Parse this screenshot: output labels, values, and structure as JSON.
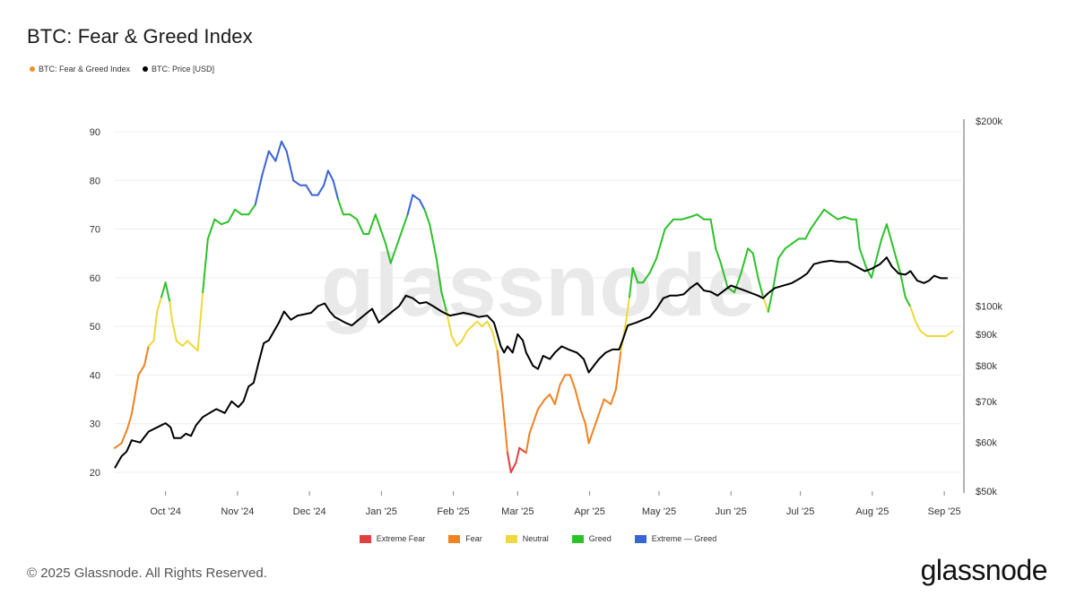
{
  "title": "BTC: Fear & Greed Index",
  "legend_top": [
    {
      "label": "BTC: Fear & Greed Index",
      "color": "#f0912a"
    },
    {
      "label": "BTC: Price [USD]",
      "color": "#000000"
    }
  ],
  "legend_bottom": [
    {
      "label": "Extreme Fear",
      "color": "#e04040"
    },
    {
      "label": "Fear",
      "color": "#ef8222"
    },
    {
      "label": "Neutral",
      "color": "#efd93a"
    },
    {
      "label": "Greed",
      "color": "#2dc12a"
    },
    {
      "label": "Extreme — Greed",
      "color": "#3a63d6"
    }
  ],
  "watermark": "glassnode",
  "copyright": "© 2025 Glassnode. All Rights Reserved.",
  "brand": "glassnode",
  "chart_data": {
    "type": "line",
    "title": "BTC: Fear & Greed Index",
    "x_start": "2024-09-09",
    "x_end": "2025-09-08",
    "x_ticks": [
      {
        "label": "Oct '24",
        "t": 0.06
      },
      {
        "label": "Nov '24",
        "t": 0.145
      },
      {
        "label": "Dec '24",
        "t": 0.23
      },
      {
        "label": "Jan '25",
        "t": 0.315
      },
      {
        "label": "Feb '25",
        "t": 0.4
      },
      {
        "label": "Mar '25",
        "t": 0.476
      },
      {
        "label": "Apr '25",
        "t": 0.561
      },
      {
        "label": "May '25",
        "t": 0.643
      },
      {
        "label": "Jun '25",
        "t": 0.728
      },
      {
        "label": "Jul '25",
        "t": 0.81
      },
      {
        "label": "Aug '25",
        "t": 0.895
      },
      {
        "label": "Sep '25",
        "t": 0.98
      }
    ],
    "y_left": {
      "min": 18,
      "max": 92,
      "ticks": [
        20,
        30,
        40,
        50,
        60,
        70,
        80,
        90
      ]
    },
    "y_right": {
      "scale": "log",
      "min": 50000,
      "max": 200000,
      "ticks": [
        {
          "value": 200000,
          "label": "$200k"
        },
        {
          "value": 100000,
          "label": "$100k"
        },
        {
          "value": 90000,
          "label": "$90k"
        },
        {
          "value": 80000,
          "label": "$80k"
        },
        {
          "value": 70000,
          "label": "$70k"
        },
        {
          "value": 60000,
          "label": "$60k"
        },
        {
          "value": 50000,
          "label": "$50k"
        }
      ]
    },
    "thresholds": {
      "extreme_fear": 25,
      "fear": 45,
      "neutral": 55,
      "greed": 75
    },
    "series": [
      {
        "name": "BTC: Fear & Greed Index",
        "points": [
          [
            0,
            25
          ],
          [
            0.008,
            26
          ],
          [
            0.015,
            29
          ],
          [
            0.02,
            32
          ],
          [
            0.028,
            40
          ],
          [
            0.035,
            42
          ],
          [
            0.04,
            46
          ],
          [
            0.046,
            47
          ],
          [
            0.05,
            53
          ],
          [
            0.055,
            56
          ],
          [
            0.06,
            59
          ],
          [
            0.065,
            55
          ],
          [
            0.068,
            51
          ],
          [
            0.073,
            47
          ],
          [
            0.08,
            46
          ],
          [
            0.086,
            47
          ],
          [
            0.092,
            46
          ],
          [
            0.098,
            45
          ],
          [
            0.104,
            57
          ],
          [
            0.11,
            68
          ],
          [
            0.118,
            72
          ],
          [
            0.126,
            71
          ],
          [
            0.134,
            71.5
          ],
          [
            0.142,
            74
          ],
          [
            0.15,
            73
          ],
          [
            0.158,
            73
          ],
          [
            0.166,
            75
          ],
          [
            0.174,
            81
          ],
          [
            0.182,
            86
          ],
          [
            0.19,
            84
          ],
          [
            0.197,
            88
          ],
          [
            0.203,
            86
          ],
          [
            0.211,
            80
          ],
          [
            0.219,
            79
          ],
          [
            0.226,
            79
          ],
          [
            0.233,
            77
          ],
          [
            0.24,
            77
          ],
          [
            0.247,
            79
          ],
          [
            0.252,
            82
          ],
          [
            0.258,
            80
          ],
          [
            0.264,
            76
          ],
          [
            0.27,
            73
          ],
          [
            0.278,
            73
          ],
          [
            0.286,
            72
          ],
          [
            0.294,
            69
          ],
          [
            0.3,
            69
          ],
          [
            0.308,
            73
          ],
          [
            0.314,
            70
          ],
          [
            0.32,
            67
          ],
          [
            0.326,
            63
          ],
          [
            0.33,
            65
          ],
          [
            0.338,
            69
          ],
          [
            0.346,
            73
          ],
          [
            0.352,
            77
          ],
          [
            0.36,
            76
          ],
          [
            0.366,
            74
          ],
          [
            0.372,
            71
          ],
          [
            0.38,
            64
          ],
          [
            0.386,
            57
          ],
          [
            0.392,
            53
          ],
          [
            0.398,
            48
          ],
          [
            0.404,
            46
          ],
          [
            0.41,
            47
          ],
          [
            0.416,
            49
          ],
          [
            0.422,
            50
          ],
          [
            0.428,
            51
          ],
          [
            0.434,
            50
          ],
          [
            0.44,
            51
          ],
          [
            0.446,
            49
          ],
          [
            0.452,
            45
          ],
          [
            0.458,
            35
          ],
          [
            0.464,
            24
          ],
          [
            0.468,
            20
          ],
          [
            0.474,
            22
          ],
          [
            0.478,
            25
          ],
          [
            0.486,
            24
          ],
          [
            0.49,
            28
          ],
          [
            0.496,
            31
          ],
          [
            0.5,
            33
          ],
          [
            0.508,
            35
          ],
          [
            0.514,
            36
          ],
          [
            0.52,
            34
          ],
          [
            0.526,
            38
          ],
          [
            0.532,
            40
          ],
          [
            0.538,
            40
          ],
          [
            0.544,
            37
          ],
          [
            0.55,
            33
          ],
          [
            0.556,
            30
          ],
          [
            0.56,
            26
          ],
          [
            0.566,
            29
          ],
          [
            0.572,
            32
          ],
          [
            0.578,
            35
          ],
          [
            0.586,
            34
          ],
          [
            0.592,
            37
          ],
          [
            0.598,
            45
          ],
          [
            0.604,
            51
          ],
          [
            0.608,
            56
          ],
          [
            0.612,
            62
          ],
          [
            0.618,
            59
          ],
          [
            0.624,
            59
          ],
          [
            0.632,
            61
          ],
          [
            0.64,
            64
          ],
          [
            0.65,
            70
          ],
          [
            0.66,
            72
          ],
          [
            0.67,
            72
          ],
          [
            0.68,
            72.5
          ],
          [
            0.688,
            73
          ],
          [
            0.696,
            72
          ],
          [
            0.704,
            72
          ],
          [
            0.71,
            66
          ],
          [
            0.716,
            63
          ],
          [
            0.724,
            58
          ],
          [
            0.732,
            57
          ],
          [
            0.74,
            61
          ],
          [
            0.748,
            66
          ],
          [
            0.754,
            65
          ],
          [
            0.76,
            60
          ],
          [
            0.766,
            56
          ],
          [
            0.772,
            53
          ],
          [
            0.778,
            58
          ],
          [
            0.784,
            64
          ],
          [
            0.792,
            66
          ],
          [
            0.8,
            67
          ],
          [
            0.808,
            68
          ],
          [
            0.816,
            68
          ],
          [
            0.822,
            70
          ],
          [
            0.83,
            72
          ],
          [
            0.838,
            74
          ],
          [
            0.846,
            73
          ],
          [
            0.854,
            72
          ],
          [
            0.862,
            72.5
          ],
          [
            0.87,
            72
          ],
          [
            0.876,
            72
          ],
          [
            0.88,
            66
          ],
          [
            0.888,
            62
          ],
          [
            0.894,
            60
          ],
          [
            0.9,
            64
          ],
          [
            0.906,
            68
          ],
          [
            0.912,
            71
          ],
          [
            0.92,
            66
          ],
          [
            0.928,
            61
          ],
          [
            0.934,
            56
          ],
          [
            0.94,
            54
          ],
          [
            0.946,
            51
          ],
          [
            0.952,
            49
          ],
          [
            0.96,
            48
          ],
          [
            0.966,
            48
          ],
          [
            0.974,
            48
          ],
          [
            0.982,
            48
          ],
          [
            0.99,
            49
          ]
        ]
      },
      {
        "name": "BTC: Price [USD]",
        "points": [
          [
            0,
            54500
          ],
          [
            0.008,
            57000
          ],
          [
            0.014,
            58000
          ],
          [
            0.02,
            60500
          ],
          [
            0.03,
            60000
          ],
          [
            0.04,
            62500
          ],
          [
            0.05,
            63500
          ],
          [
            0.06,
            64500
          ],
          [
            0.066,
            63500
          ],
          [
            0.07,
            61000
          ],
          [
            0.078,
            61000
          ],
          [
            0.084,
            62000
          ],
          [
            0.09,
            61500
          ],
          [
            0.096,
            64000
          ],
          [
            0.104,
            66000
          ],
          [
            0.112,
            67000
          ],
          [
            0.12,
            68000
          ],
          [
            0.13,
            67000
          ],
          [
            0.138,
            70000
          ],
          [
            0.146,
            68500
          ],
          [
            0.152,
            70000
          ],
          [
            0.158,
            74000
          ],
          [
            0.164,
            75000
          ],
          [
            0.17,
            81000
          ],
          [
            0.176,
            87000
          ],
          [
            0.182,
            88000
          ],
          [
            0.188,
            91000
          ],
          [
            0.194,
            94000
          ],
          [
            0.2,
            98000
          ],
          [
            0.208,
            95000
          ],
          [
            0.216,
            96500
          ],
          [
            0.224,
            97000
          ],
          [
            0.232,
            97500
          ],
          [
            0.24,
            100000
          ],
          [
            0.248,
            101000
          ],
          [
            0.254,
            98000
          ],
          [
            0.26,
            96000
          ],
          [
            0.266,
            95000
          ],
          [
            0.272,
            94000
          ],
          [
            0.28,
            93000
          ],
          [
            0.288,
            95000
          ],
          [
            0.296,
            97000
          ],
          [
            0.304,
            99000
          ],
          [
            0.312,
            94000
          ],
          [
            0.32,
            96000
          ],
          [
            0.328,
            98000
          ],
          [
            0.336,
            100000
          ],
          [
            0.344,
            104000
          ],
          [
            0.352,
            103000
          ],
          [
            0.36,
            101000
          ],
          [
            0.368,
            101500
          ],
          [
            0.376,
            100000
          ],
          [
            0.386,
            98000
          ],
          [
            0.396,
            96500
          ],
          [
            0.404,
            97000
          ],
          [
            0.412,
            97500
          ],
          [
            0.42,
            97000
          ],
          [
            0.43,
            96000
          ],
          [
            0.44,
            96500
          ],
          [
            0.448,
            94000
          ],
          [
            0.452,
            90000
          ],
          [
            0.456,
            86000
          ],
          [
            0.46,
            84000
          ],
          [
            0.464,
            86000
          ],
          [
            0.47,
            84000
          ],
          [
            0.476,
            90000
          ],
          [
            0.482,
            88000
          ],
          [
            0.486,
            84000
          ],
          [
            0.49,
            82000
          ],
          [
            0.494,
            80000
          ],
          [
            0.5,
            79000
          ],
          [
            0.506,
            83000
          ],
          [
            0.514,
            82000
          ],
          [
            0.52,
            84000
          ],
          [
            0.528,
            86000
          ],
          [
            0.536,
            85000
          ],
          [
            0.546,
            84000
          ],
          [
            0.554,
            82000
          ],
          [
            0.56,
            78000
          ],
          [
            0.566,
            80000
          ],
          [
            0.572,
            82000
          ],
          [
            0.58,
            84000
          ],
          [
            0.588,
            85000
          ],
          [
            0.596,
            85000
          ],
          [
            0.6,
            88000
          ],
          [
            0.606,
            93000
          ],
          [
            0.616,
            94000
          ],
          [
            0.624,
            95000
          ],
          [
            0.632,
            96000
          ],
          [
            0.64,
            99000
          ],
          [
            0.648,
            103000
          ],
          [
            0.656,
            104000
          ],
          [
            0.664,
            104000
          ],
          [
            0.672,
            104500
          ],
          [
            0.68,
            107000
          ],
          [
            0.688,
            109000
          ],
          [
            0.696,
            106000
          ],
          [
            0.704,
            105500
          ],
          [
            0.712,
            104000
          ],
          [
            0.72,
            106000
          ],
          [
            0.728,
            108000
          ],
          [
            0.736,
            107000
          ],
          [
            0.744,
            106000
          ],
          [
            0.752,
            105000
          ],
          [
            0.76,
            104000
          ],
          [
            0.766,
            103000
          ],
          [
            0.772,
            105000
          ],
          [
            0.78,
            107000
          ],
          [
            0.79,
            108000
          ],
          [
            0.8,
            109000
          ],
          [
            0.81,
            111000
          ],
          [
            0.818,
            113000
          ],
          [
            0.826,
            117000
          ],
          [
            0.836,
            118000
          ],
          [
            0.846,
            118500
          ],
          [
            0.856,
            118000
          ],
          [
            0.866,
            118000
          ],
          [
            0.876,
            116000
          ],
          [
            0.886,
            114000
          ],
          [
            0.894,
            115000
          ],
          [
            0.904,
            117000
          ],
          [
            0.912,
            120000
          ],
          [
            0.918,
            116000
          ],
          [
            0.926,
            113000
          ],
          [
            0.934,
            112500
          ],
          [
            0.94,
            114000
          ],
          [
            0.948,
            110000
          ],
          [
            0.956,
            109000
          ],
          [
            0.962,
            110000
          ],
          [
            0.968,
            112000
          ],
          [
            0.976,
            111000
          ],
          [
            0.984,
            111000
          ]
        ]
      }
    ]
  }
}
